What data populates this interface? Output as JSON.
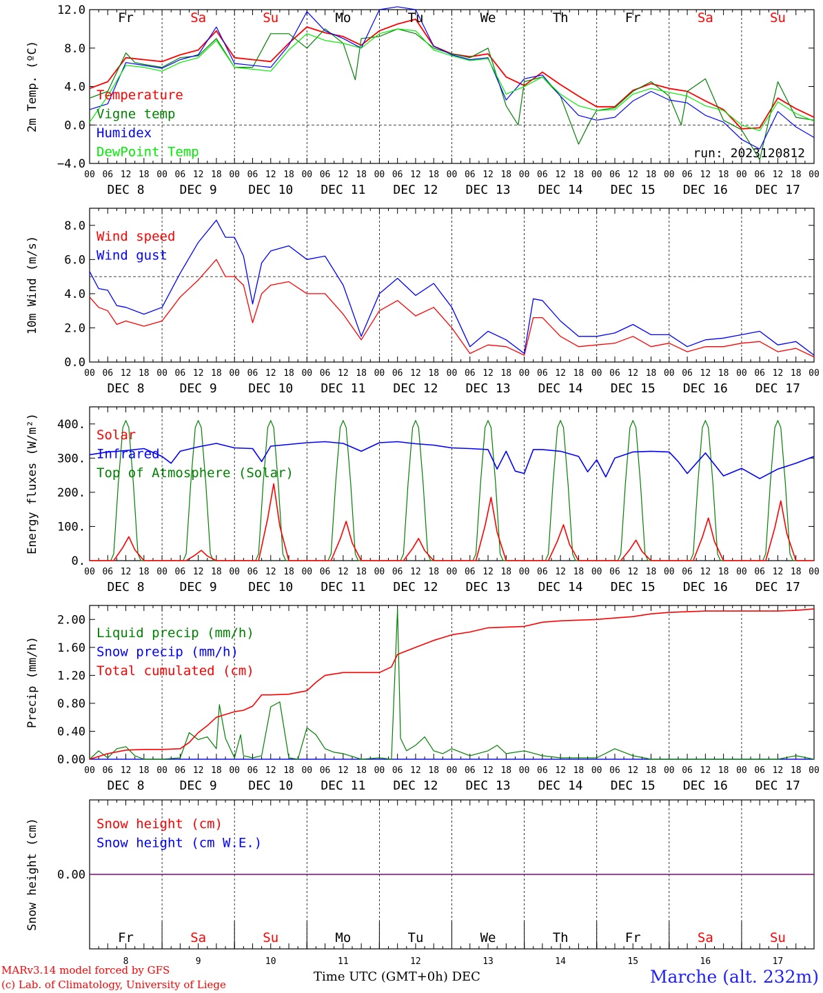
{
  "footer": {
    "model": "MARv3.14 model forced by GFS",
    "copyright": "(c) Lab. of Climatology, University of Liege",
    "time_axis": "Time UTC (GMT+0h) DEC",
    "station": "Marche (alt. 232m)"
  },
  "run_label": "run: 2023120812",
  "days": {
    "names": [
      "Fr",
      "Sa",
      "Su",
      "Mo",
      "Tu",
      "We",
      "Th",
      "Fr",
      "Sa",
      "Su"
    ],
    "weekend": [
      false,
      true,
      true,
      false,
      false,
      false,
      false,
      false,
      true,
      true
    ],
    "dates": [
      "DEC  8",
      "DEC  9",
      "DEC 10",
      "DEC 11",
      "DEC 12",
      "DEC 13",
      "DEC 14",
      "DEC 15",
      "DEC 16",
      "DEC 17"
    ],
    "numbers": [
      "8",
      "9",
      "10",
      "11",
      "12",
      "13",
      "14",
      "15",
      "16",
      "17"
    ],
    "hour_ticks": [
      "00",
      "06",
      "12",
      "18"
    ],
    "final_tick": "00"
  },
  "colors": {
    "red": "#ff0000",
    "green": "#008000",
    "blue": "#0000ff",
    "lightgreen": "#00ee00",
    "purple": "#800080"
  },
  "chart_data": [
    {
      "type": "line",
      "ylabel": "2m Temp. (ºC)",
      "ylim": [
        -4,
        12
      ],
      "yticks": [
        "-4.0",
        "0.0",
        "4.0",
        "8.0",
        "12.0"
      ],
      "reference_line": 0,
      "x_unit": "hours since 2023-12-08 00 UTC",
      "series": [
        {
          "name": "Temperature",
          "color": "red",
          "x": [
            0,
            6,
            12,
            18,
            24,
            30,
            36,
            42,
            48,
            54,
            60,
            66,
            72,
            78,
            84,
            90,
            96,
            102,
            108,
            114,
            120,
            126,
            132,
            138,
            144,
            150,
            156,
            162,
            168,
            174,
            180,
            186,
            192,
            198,
            204,
            210,
            216,
            222,
            228,
            234,
            240
          ],
          "y": [
            3.8,
            4.5,
            7.0,
            6.8,
            6.6,
            7.3,
            7.8,
            9.8,
            7.0,
            6.8,
            6.6,
            8.5,
            10.2,
            9.6,
            9.2,
            8.3,
            9.8,
            10.5,
            11.0,
            8.2,
            7.4,
            7.1,
            7.4,
            5.0,
            4.1,
            5.5,
            4.2,
            3.0,
            1.9,
            1.9,
            3.6,
            4.3,
            3.8,
            3.5,
            2.5,
            1.6,
            -0.4,
            -0.3,
            2.8,
            1.7,
            0.8
          ]
        },
        {
          "name": "Vigne temp",
          "color": "green",
          "x": [
            0,
            6,
            12,
            15,
            18,
            24,
            30,
            36,
            42,
            48,
            54,
            60,
            66,
            72,
            78,
            84,
            88,
            90,
            96,
            102,
            108,
            114,
            120,
            126,
            132,
            138,
            142,
            144,
            150,
            156,
            162,
            166,
            168,
            174,
            180,
            186,
            192,
            196,
            198,
            204,
            210,
            216,
            222,
            228,
            234,
            240
          ],
          "y": [
            2.8,
            3.5,
            7.5,
            6.5,
            6.3,
            6.0,
            7.0,
            7.2,
            9.0,
            6.0,
            6.0,
            9.5,
            9.5,
            8.0,
            10.0,
            8.5,
            4.7,
            9.0,
            9.2,
            10.0,
            9.5,
            8.0,
            7.4,
            7.0,
            8.0,
            2.0,
            0.0,
            4.5,
            5.0,
            3.0,
            -2.0,
            0.5,
            1.5,
            1.8,
            3.5,
            4.5,
            3.0,
            0.0,
            3.5,
            4.8,
            0.5,
            -0.5,
            -3.6,
            4.5,
            0.8,
            0.5
          ]
        },
        {
          "name": "Humidex",
          "color": "blue",
          "x": [
            0,
            6,
            12,
            18,
            24,
            30,
            36,
            42,
            48,
            54,
            60,
            66,
            72,
            78,
            84,
            90,
            96,
            102,
            108,
            114,
            120,
            126,
            132,
            138,
            144,
            150,
            156,
            162,
            168,
            174,
            180,
            186,
            192,
            198,
            204,
            210,
            216,
            222,
            228,
            234,
            240
          ],
          "y": [
            1.6,
            2.2,
            6.5,
            6.2,
            5.9,
            6.8,
            7.3,
            10.2,
            6.4,
            6.2,
            6.0,
            8.3,
            11.8,
            9.8,
            9.0,
            8.0,
            12.0,
            12.3,
            12.0,
            8.2,
            7.3,
            6.8,
            7.0,
            2.6,
            4.8,
            5.2,
            3.0,
            1.0,
            0.5,
            0.8,
            2.5,
            3.5,
            2.6,
            2.3,
            1.0,
            0.3,
            -1.5,
            -2.5,
            1.4,
            -0.2,
            -1.3
          ]
        },
        {
          "name": "DewPoint Temp",
          "color": "lightgreen",
          "x": [
            0,
            6,
            12,
            18,
            24,
            30,
            36,
            42,
            48,
            54,
            60,
            66,
            72,
            78,
            84,
            90,
            96,
            102,
            108,
            114,
            120,
            126,
            132,
            138,
            144,
            150,
            156,
            162,
            168,
            174,
            180,
            186,
            192,
            198,
            204,
            210,
            216,
            222,
            228,
            234,
            240
          ],
          "y": [
            0.3,
            3.0,
            6.2,
            6.0,
            5.6,
            6.5,
            7.0,
            8.8,
            6.0,
            5.8,
            5.6,
            7.8,
            9.5,
            8.8,
            8.5,
            8.0,
            9.5,
            10.0,
            9.8,
            7.8,
            7.2,
            6.7,
            6.9,
            3.2,
            4.0,
            5.0,
            3.2,
            2.0,
            1.5,
            1.6,
            3.2,
            3.8,
            3.4,
            3.0,
            2.0,
            1.5,
            0.0,
            -0.6,
            2.4,
            1.2,
            0.4
          ]
        }
      ]
    },
    {
      "type": "line",
      "ylabel": "10m Wind (m/s)",
      "ylim": [
        0,
        9
      ],
      "yticks": [
        "0.0",
        "2.0",
        "4.0",
        "6.0",
        "8.0"
      ],
      "reference_line": 5,
      "x_unit": "hours since 2023-12-08 00 UTC",
      "series": [
        {
          "name": "Wind speed",
          "color": "red",
          "x": [
            0,
            3,
            6,
            9,
            12,
            18,
            24,
            30,
            36,
            42,
            45,
            48,
            51,
            54,
            57,
            60,
            66,
            72,
            78,
            84,
            90,
            96,
            102,
            108,
            114,
            120,
            126,
            132,
            138,
            144,
            147,
            150,
            156,
            162,
            168,
            174,
            180,
            186,
            192,
            198,
            204,
            210,
            216,
            222,
            228,
            234,
            240
          ],
          "y": [
            3.8,
            3.2,
            3.0,
            2.2,
            2.4,
            2.1,
            2.4,
            3.8,
            4.8,
            6.0,
            5.0,
            5.0,
            4.5,
            2.3,
            4.0,
            4.5,
            4.7,
            4.0,
            4.0,
            2.8,
            1.3,
            3.0,
            3.6,
            2.7,
            3.2,
            2.0,
            0.5,
            1.0,
            0.9,
            0.4,
            2.6,
            2.6,
            1.5,
            0.9,
            1.0,
            1.1,
            1.5,
            0.9,
            1.1,
            0.6,
            0.9,
            0.9,
            1.1,
            1.2,
            0.6,
            0.8,
            0.3
          ]
        },
        {
          "name": "Wind gust",
          "color": "blue",
          "x": [
            0,
            3,
            6,
            9,
            12,
            18,
            24,
            30,
            36,
            42,
            45,
            48,
            51,
            54,
            57,
            60,
            66,
            72,
            78,
            84,
            90,
            96,
            102,
            108,
            114,
            120,
            126,
            132,
            138,
            144,
            147,
            150,
            156,
            162,
            168,
            174,
            180,
            186,
            192,
            198,
            204,
            210,
            216,
            222,
            228,
            234,
            240
          ],
          "y": [
            5.3,
            4.3,
            4.2,
            3.3,
            3.2,
            2.8,
            3.2,
            5.2,
            7.0,
            8.3,
            7.3,
            7.3,
            6.2,
            3.4,
            5.8,
            6.5,
            6.8,
            6.0,
            6.2,
            4.5,
            1.5,
            4.0,
            4.9,
            3.9,
            4.6,
            3.2,
            0.9,
            1.8,
            1.3,
            0.5,
            3.7,
            3.6,
            2.4,
            1.5,
            1.5,
            1.7,
            2.2,
            1.6,
            1.6,
            0.9,
            1.3,
            1.4,
            1.6,
            1.8,
            1.0,
            1.2,
            0.4
          ]
        }
      ]
    },
    {
      "type": "line",
      "ylabel": "Energy fluxes (W/m²)",
      "ylim": [
        0,
        450
      ],
      "yticks": [
        "0.",
        "100.",
        "200.",
        "300.",
        "400."
      ],
      "x_unit": "hours since 2023-12-08 00 UTC",
      "series": [
        {
          "name": "Solar",
          "color": "red",
          "peaks": [
            {
              "hour": 13,
              "value": 70
            },
            {
              "hour": 37,
              "value": 30
            },
            {
              "hour": 61,
              "value": 225
            },
            {
              "hour": 85,
              "value": 115
            },
            {
              "hour": 109,
              "value": 65
            },
            {
              "hour": 133,
              "value": 185
            },
            {
              "hour": 157,
              "value": 105
            },
            {
              "hour": 181,
              "value": 60
            },
            {
              "hour": 205,
              "value": 125
            },
            {
              "hour": 229,
              "value": 175
            }
          ]
        },
        {
          "name": "Infrared",
          "color": "blue",
          "x": [
            0,
            6,
            12,
            18,
            24,
            27,
            30,
            36,
            42,
            48,
            54,
            57,
            60,
            66,
            72,
            78,
            84,
            90,
            96,
            102,
            108,
            114,
            120,
            126,
            132,
            135,
            138,
            141,
            144,
            147,
            150,
            156,
            162,
            165,
            168,
            171,
            174,
            180,
            186,
            192,
            195,
            198,
            204,
            210,
            216,
            222,
            228,
            234,
            240
          ],
          "y": [
            310,
            318,
            322,
            328,
            305,
            285,
            320,
            333,
            343,
            330,
            328,
            290,
            335,
            340,
            345,
            348,
            343,
            320,
            345,
            348,
            342,
            338,
            330,
            328,
            325,
            268,
            320,
            262,
            255,
            325,
            325,
            320,
            305,
            260,
            295,
            245,
            300,
            318,
            320,
            318,
            290,
            255,
            315,
            248,
            270,
            240,
            268,
            285,
            305
          ]
        },
        {
          "name": "Top of Atmosphere (Solar)",
          "color": "green",
          "peak_value": 410,
          "sunrise_hour": 8,
          "sunset_hour": 16
        }
      ]
    },
    {
      "type": "line",
      "ylabel": "Precip (mm/h)",
      "ylim": [
        0,
        2.2
      ],
      "yticks": [
        "0.00",
        "0.40",
        "0.80",
        "1.20",
        "1.60",
        "2.00"
      ],
      "x_unit": "hours since 2023-12-08 00 UTC",
      "series": [
        {
          "name": "Liquid precip (mm/h)",
          "color": "green",
          "x": [
            0,
            3,
            6,
            9,
            12,
            15,
            18,
            24,
            30,
            33,
            36,
            39,
            42,
            43,
            45,
            48,
            50,
            51,
            54,
            57,
            60,
            63,
            66,
            69,
            72,
            75,
            78,
            81,
            84,
            90,
            96,
            100,
            102,
            103,
            105,
            108,
            111,
            114,
            117,
            120,
            126,
            132,
            135,
            138,
            144,
            150,
            156,
            162,
            168,
            174,
            180,
            186,
            192,
            198,
            204,
            210,
            216,
            222,
            228,
            234,
            240
          ],
          "y": [
            0,
            0.12,
            0.02,
            0.15,
            0.18,
            0.05,
            0,
            0,
            0.02,
            0.38,
            0.28,
            0.32,
            0.15,
            0.78,
            0.3,
            0.02,
            0.35,
            0.05,
            0.02,
            0.05,
            0.75,
            0.82,
            0.02,
            0,
            0.45,
            0.35,
            0.15,
            0.1,
            0.08,
            0,
            0.02,
            0,
            2.15,
            0.3,
            0.12,
            0.2,
            0.32,
            0.12,
            0.08,
            0.15,
            0.05,
            0.12,
            0.2,
            0.08,
            0.12,
            0.05,
            0.02,
            0.02,
            0.02,
            0.15,
            0.05,
            0,
            0,
            0,
            0,
            0,
            0,
            0,
            0,
            0.05,
            0
          ]
        },
        {
          "name": "Snow precip (mm/h)",
          "color": "blue",
          "x": [
            0,
            240
          ],
          "y": [
            0,
            0
          ]
        },
        {
          "name": "Total cumulated (cm)",
          "color": "red",
          "x": [
            0,
            6,
            12,
            18,
            24,
            30,
            33,
            36,
            39,
            42,
            45,
            48,
            51,
            54,
            57,
            60,
            66,
            72,
            75,
            78,
            84,
            90,
            96,
            100,
            102,
            108,
            114,
            120,
            126,
            132,
            138,
            144,
            150,
            156,
            162,
            168,
            174,
            180,
            186,
            192,
            198,
            204,
            210,
            216,
            222,
            228,
            234,
            240
          ],
          "y": [
            0,
            0.08,
            0.13,
            0.14,
            0.14,
            0.15,
            0.24,
            0.38,
            0.48,
            0.6,
            0.64,
            0.68,
            0.7,
            0.76,
            0.92,
            0.92,
            0.93,
            0.98,
            1.1,
            1.2,
            1.24,
            1.24,
            1.24,
            1.32,
            1.5,
            1.6,
            1.7,
            1.78,
            1.82,
            1.88,
            1.89,
            1.9,
            1.96,
            1.98,
            1.99,
            2.0,
            2.02,
            2.04,
            2.08,
            2.1,
            2.11,
            2.12,
            2.12,
            2.12,
            2.12,
            2.12,
            2.13,
            2.15
          ]
        }
      ]
    },
    {
      "type": "line",
      "ylabel": "Snow height (cm)",
      "ylim": [
        -1,
        1
      ],
      "yticks": [
        "0.00"
      ],
      "x_unit": "hours since 2023-12-08 00 UTC",
      "series": [
        {
          "name": "Snow height (cm)",
          "color": "red",
          "x": [
            0,
            240
          ],
          "y": [
            0,
            0
          ]
        },
        {
          "name": "Snow height (cm W.E.)",
          "color": "blue",
          "x": [
            0,
            240
          ],
          "y": [
            0,
            0
          ]
        }
      ]
    }
  ]
}
